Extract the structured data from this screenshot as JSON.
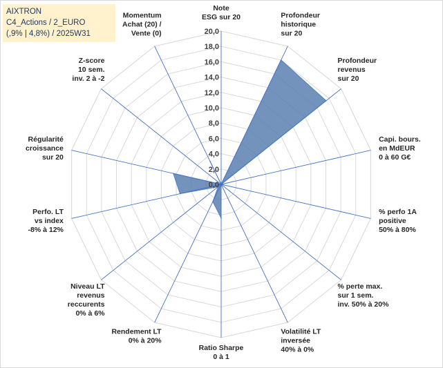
{
  "header": {
    "line1": "AIXTRON",
    "line2": "C4_Actions / 2_EURO",
    "line3": "(,9% | 4,8%) / 2025W31"
  },
  "chart_data": {
    "type": "radar",
    "rlim": [
      0,
      20
    ],
    "ticks": [
      "0,0",
      "2,0",
      "4,0",
      "6,0",
      "8,0",
      "10,0",
      "12,0",
      "14,0",
      "16,0",
      "18,0",
      "20,0"
    ],
    "grid": true,
    "axes": [
      [
        "Note",
        "ESG sur 20"
      ],
      [
        "Profondeur",
        "historique",
        "sur 20"
      ],
      [
        "Profondeur",
        "revenus",
        "sur 20"
      ],
      [
        "Capi. bours.",
        "en MdEUR",
        "0 à 60 G€"
      ],
      [
        "% perfo 1A",
        "positive",
        "50% à 80%"
      ],
      [
        "% perte max.",
        "sur 1 sem.",
        "inv. 50% à 20%"
      ],
      [
        "Volatilité LT",
        "inversée",
        "40% à 0%"
      ],
      [
        "Ratio Sharpe",
        "0 à 1"
      ],
      [
        "Rendement LT",
        "0% à 20%"
      ],
      [
        "Niveau LT",
        "revenus",
        "reccurents",
        "0% à 6%"
      ],
      [
        "Perfo. LT",
        "vs index",
        "-8% à 12%"
      ],
      [
        "Régularité",
        "croissance",
        "sur 20"
      ],
      [
        "Z-score",
        "10 sem.",
        "inv. 2 à -2"
      ],
      [
        "Momentum",
        "Achat (20) /",
        "Vente (0)"
      ]
    ],
    "values": [
      0,
      18.0,
      17.5,
      0,
      0,
      0,
      0,
      4.4,
      2.5,
      0.5,
      5.5,
      6.4,
      0,
      3.3
    ],
    "series_color": "#4f81bd",
    "series_fill": "#5b80b2"
  }
}
